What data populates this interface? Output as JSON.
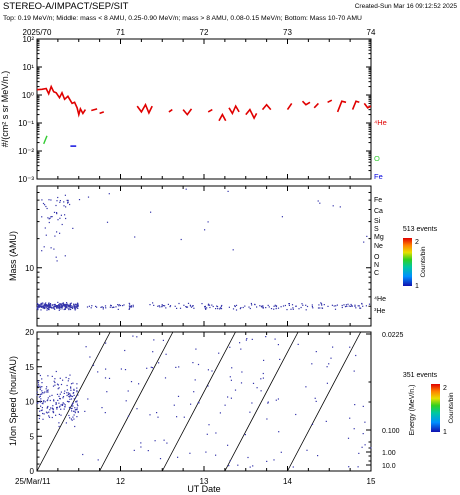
{
  "header": {
    "title": "STEREO-A/IMPACT/SEP/SIT",
    "created": "Created-Sun Mar 16 09:12:52 2025",
    "subtitle": "Top: 0.19 MeV/n; Middle: mass < 8 AMU, 0.25-0.90 MeV/n; mass > 8 AMU, 0.08-0.15 MeV/n; Bottom: Mass 10-70 AMU"
  },
  "colors": {
    "he4": "#e00000",
    "o": "#33cc33",
    "fe": "#0000dd",
    "points": "#3333aa"
  },
  "chart_data": [
    {
      "type": "line",
      "panel": "top",
      "ylabel": "#/(cm² s sr MeV/n.)",
      "y_scale": "log",
      "ylim": [
        0.001,
        100
      ],
      "y_ticks": [
        "10⁻³",
        "10⁻²",
        "10⁻¹",
        "10⁰",
        "10¹",
        "10²"
      ],
      "xlim": [
        70,
        74
      ],
      "x_top_ticks": [
        "2025/70",
        "71",
        "72",
        "73",
        "74"
      ],
      "series": [
        {
          "name": "⁴He",
          "color": "#e00000",
          "segments": [
            [
              [
                70.0,
                1.55
              ],
              [
                70.06,
                1.6
              ],
              [
                70.11,
                1.7
              ],
              [
                70.14,
                1.1
              ],
              [
                70.17,
                2.0
              ],
              [
                70.2,
                1.3
              ],
              [
                70.23,
                1.2
              ],
              [
                70.27,
                0.8
              ],
              [
                70.3,
                1.2
              ],
              [
                70.33,
                0.7
              ],
              [
                70.37,
                0.9
              ],
              [
                70.42,
                0.5
              ],
              [
                70.45,
                0.55
              ],
              [
                70.48,
                0.35
              ],
              [
                70.5,
                0.2
              ],
              [
                70.52,
                0.32
              ],
              [
                70.55,
                0.22
              ],
              [
                70.58,
                0.3
              ]
            ],
            [
              [
                70.65,
                0.28
              ],
              [
                70.72,
                0.32
              ]
            ],
            [
              [
                70.75,
                0.22
              ],
              [
                70.8,
                0.25
              ]
            ],
            [
              [
                71.2,
                0.4
              ],
              [
                71.25,
                0.25
              ],
              [
                71.3,
                0.45
              ],
              [
                71.34,
                0.23
              ],
              [
                71.38,
                0.4
              ]
            ],
            [
              [
                71.58,
                0.25
              ],
              [
                71.62,
                0.3
              ]
            ],
            [
              [
                71.75,
                0.3
              ],
              [
                71.8,
                0.2
              ],
              [
                71.85,
                0.32
              ]
            ],
            [
              [
                72.05,
                0.25
              ],
              [
                72.1,
                0.3
              ]
            ],
            [
              [
                72.18,
                0.12
              ],
              [
                72.22,
                0.2
              ],
              [
                72.26,
                0.12
              ]
            ],
            [
              [
                72.3,
                0.35
              ],
              [
                72.34,
                0.22
              ],
              [
                72.38,
                0.4
              ],
              [
                72.42,
                0.25
              ]
            ],
            [
              [
                72.5,
                0.2
              ],
              [
                72.55,
                0.3
              ],
              [
                72.6,
                0.15
              ],
              [
                72.63,
                0.22
              ]
            ],
            [
              [
                72.7,
                0.3
              ],
              [
                72.75,
                0.45
              ],
              [
                72.8,
                0.3
              ]
            ],
            [
              [
                73.0,
                0.3
              ],
              [
                73.05,
                0.5
              ]
            ],
            [
              [
                73.18,
                0.6
              ],
              [
                73.22,
                0.45
              ],
              [
                73.27,
                0.55
              ]
            ],
            [
              [
                73.32,
                0.35
              ],
              [
                73.37,
                0.5
              ]
            ],
            [
              [
                73.48,
                0.55
              ],
              [
                73.53,
                0.65
              ]
            ],
            [
              [
                73.6,
                0.25
              ],
              [
                73.65,
                0.6
              ],
              [
                73.7,
                0.55
              ]
            ],
            [
              [
                73.78,
                0.3
              ],
              [
                73.82,
                0.6
              ],
              [
                73.86,
                0.55
              ]
            ],
            [
              [
                73.92,
                0.5
              ],
              [
                73.96,
                0.35
              ],
              [
                74.0,
                0.4
              ]
            ]
          ]
        },
        {
          "name": "O",
          "color": "#33cc33",
          "segments": [
            [
              [
                70.08,
                0.018
              ],
              [
                70.12,
                0.035
              ]
            ]
          ]
        },
        {
          "name": "Fe",
          "color": "#0000dd",
          "segments": [
            [
              [
                70.4,
                0.015
              ],
              [
                70.47,
                0.015
              ]
            ]
          ]
        }
      ]
    },
    {
      "type": "scatter",
      "panel": "middle",
      "ylabel": "Mass (AMU)",
      "y_scale": "log",
      "ylim": [
        2.5,
        70
      ],
      "y_ticks": [
        "10"
      ],
      "xlim": [
        11,
        15
      ],
      "species_labels": [
        "Fe",
        "Ca",
        "Si",
        "S",
        "Mg",
        "Ne",
        "O",
        "N",
        "C",
        "⁴He",
        "³He"
      ],
      "colorbar": {
        "events": "513 events",
        "label": "Counts/bin",
        "ticks": [
          "1",
          "2"
        ]
      }
    },
    {
      "type": "scatter",
      "panel": "bottom",
      "ylabel": "1/Ion Speed (hour/AU)",
      "ylim": [
        0,
        20
      ],
      "y_ticks": [
        "0",
        "5",
        "10",
        "15",
        "20"
      ],
      "xlabel": "UT Date",
      "xlim": [
        11,
        15
      ],
      "x_ticks": [
        "25/Mar/11",
        "12",
        "13",
        "14",
        "15"
      ],
      "right_axis": {
        "label": "Energy (MeV/n.)",
        "ticks": [
          "0.0225",
          "0.100",
          "1.00",
          "10.0"
        ]
      },
      "colorbar": {
        "events": "351 events",
        "label": "Counts/bin",
        "ticks": [
          "1",
          "2"
        ]
      }
    }
  ]
}
